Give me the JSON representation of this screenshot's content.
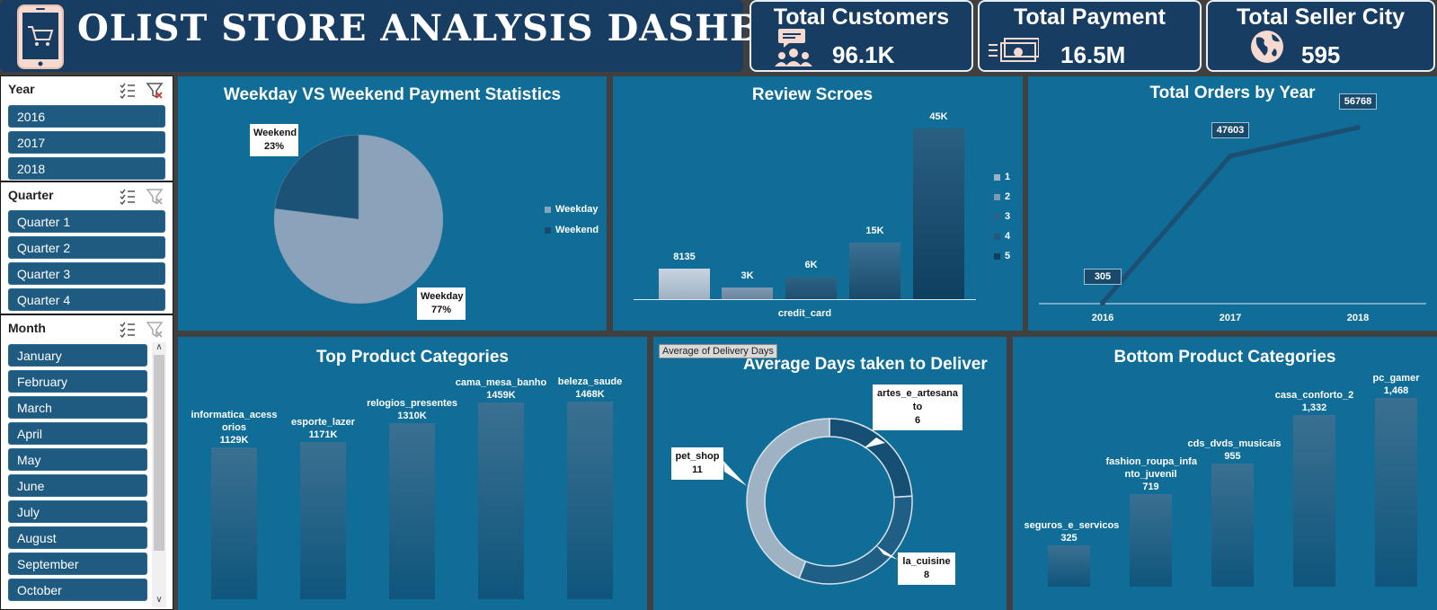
{
  "header": {
    "title": "OLIST STORE ANALYSIS DASHBOARD",
    "kpis": [
      {
        "label": "Total Customers",
        "value": "96.1K",
        "icon": "customers-icon"
      },
      {
        "label": "Total Payment",
        "value": "16.5M",
        "icon": "money-icon"
      },
      {
        "label": "Total Seller City",
        "value": "595",
        "icon": "globe-icon"
      }
    ]
  },
  "slicers": {
    "year": {
      "title": "Year",
      "items": [
        "2016",
        "2017",
        "2018"
      ]
    },
    "quarter": {
      "title": "Quarter",
      "items": [
        "Quarter 1",
        "Quarter 2",
        "Quarter 3",
        "Quarter 4"
      ]
    },
    "month": {
      "title": "Month",
      "items": [
        "January",
        "February",
        "March",
        "April",
        "May",
        "June",
        "July",
        "August",
        "September",
        "October"
      ]
    }
  },
  "colors": {
    "panel": "#0f6d97",
    "header": "#173d63",
    "slicer_chip": "#1f5a80"
  },
  "chart_data": [
    {
      "type": "pie",
      "title": "Weekday VS Weekend Payment Statistics",
      "slices": [
        {
          "name": "Weekday",
          "percent": 77,
          "label": "Weekday\n77%"
        },
        {
          "name": "Weekend",
          "percent": 23,
          "label": "Weekend\n23%"
        }
      ],
      "legend": [
        "Weekday",
        "Weekend"
      ],
      "legend_position": "right"
    },
    {
      "type": "bar",
      "title": "Review Scroes",
      "xlabel": "credit_card",
      "series": [
        {
          "name": "1",
          "value": 8135,
          "label": "8135"
        },
        {
          "name": "2",
          "value": 3000,
          "label": "3K"
        },
        {
          "name": "3",
          "value": 6000,
          "label": "6K"
        },
        {
          "name": "4",
          "value": 15000,
          "label": "15K"
        },
        {
          "name": "5",
          "value": 45000,
          "label": "45K"
        }
      ],
      "legend": [
        "1",
        "2",
        "3",
        "4",
        "5"
      ],
      "legend_position": "right"
    },
    {
      "type": "line",
      "title": "Total Orders by Year",
      "x": [
        "2016",
        "2017",
        "2018"
      ],
      "values": [
        305,
        47603,
        56768
      ],
      "labels": [
        "305",
        "47603",
        "56768"
      ]
    },
    {
      "type": "bar",
      "title": "Top Product Categories",
      "categories": [
        "informatica_acessorios",
        "esporte_lazer",
        "relogios_presentes",
        "cama_mesa_banho",
        "beleza_saude"
      ],
      "category_labels": [
        "informatica_acess\norios",
        "esporte_lazer",
        "relogios_presentes",
        "cama_mesa_banho",
        "beleza_saude"
      ],
      "values": [
        1129,
        1171,
        1310,
        1459,
        1468
      ],
      "labels": [
        "1129K",
        "1171K",
        "1310K",
        "1459K",
        "1468K"
      ]
    },
    {
      "type": "pie",
      "title": "Average Days taken to Deliver",
      "tag": "Average of Delivery Days",
      "slices": [
        {
          "name": "artes_e_artesanato",
          "value": 6,
          "label": "artes_e_artesana\nto\n6"
        },
        {
          "name": "la_cuisine",
          "value": 8,
          "label": "la_cuisine\n8"
        },
        {
          "name": "pet_shop",
          "value": 11,
          "label": "pet_shop\n11"
        }
      ]
    },
    {
      "type": "bar",
      "title": "Bottom Product Categories",
      "categories": [
        "seguros_e_servicos",
        "fashion_roupa_infanto_juvenil",
        "cds_dvds_musicais",
        "casa_conforto_2",
        "pc_gamer"
      ],
      "category_labels": [
        "seguros_e_servicos",
        "fashion_roupa_infa\nnto_juvenil",
        "cds_dvds_musicais",
        "casa_conforto_2",
        "pc_gamer"
      ],
      "values": [
        325,
        719,
        955,
        1332,
        1468
      ],
      "labels": [
        "325",
        "719",
        "955",
        "1,332",
        "1,468"
      ]
    }
  ]
}
